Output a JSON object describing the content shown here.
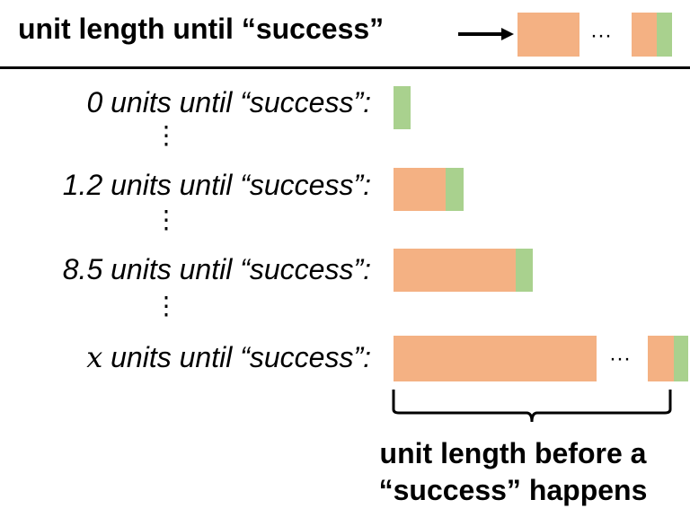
{
  "header": {
    "title": "unit length until “success”",
    "ellipsis": "···"
  },
  "rows": [
    {
      "label": "0 units until “success”:"
    },
    {
      "label": "1.2 units until “success”:"
    },
    {
      "label": "8.5 units until “success”:"
    },
    {
      "label_var": "x",
      "label": " units until “success”:",
      "ellipsis": "···"
    }
  ],
  "vdots": "⋮",
  "brace_caption": {
    "line1": "unit length before a",
    "line2": "“success” happens"
  },
  "colors": {
    "failure": "#F4B183",
    "success": "#A9D18E"
  }
}
